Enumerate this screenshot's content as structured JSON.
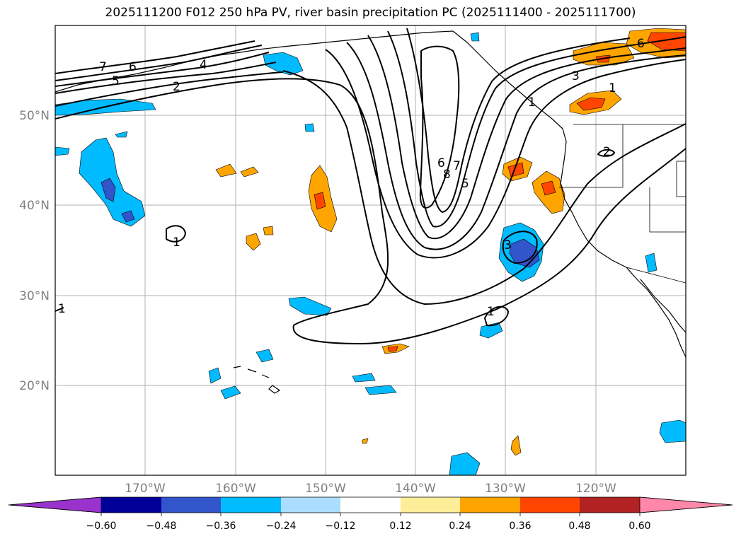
{
  "title": "2025111200 F012 250 hPa PV, river basin precipitation PC (2025111400 - 2025111700)",
  "lat_labels": [
    "50°N",
    "40°N",
    "30°N",
    "20°N"
  ],
  "lon_labels": [
    "170°W",
    "160°W",
    "150°W",
    "140°W",
    "130°W",
    "120°W"
  ],
  "contour_labels": [
    "7",
    "6",
    "5",
    "4",
    "2",
    "1",
    "1",
    "3",
    "1",
    "2",
    "6",
    "6",
    "8",
    "7",
    "5",
    "3",
    "1",
    "1"
  ],
  "colorbar": {
    "colors": [
      "#9933cc",
      "#000099",
      "#3355cc",
      "#00bbff",
      "#aaddff",
      "#ffffff",
      "#ffee99",
      "#ffa500",
      "#ff4500",
      "#b22222",
      "#ff88aa"
    ],
    "tick_labels": [
      "−0.60",
      "−0.48",
      "−0.36",
      "−0.24",
      "−0.12",
      "0.12",
      "0.24",
      "0.36",
      "0.48",
      "0.60"
    ]
  }
}
